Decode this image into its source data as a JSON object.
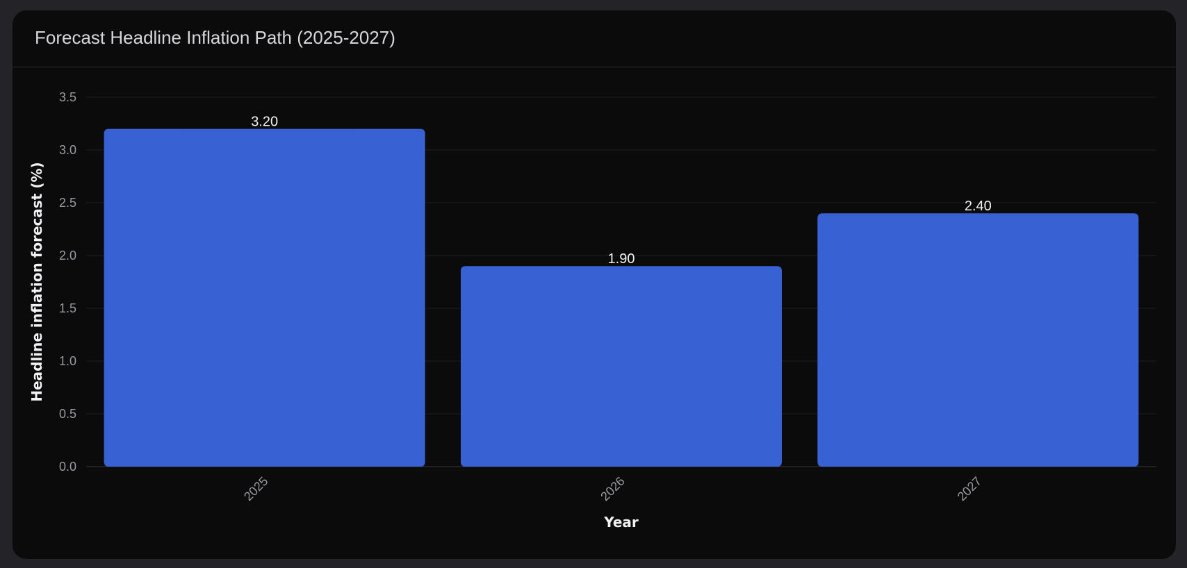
{
  "card": {
    "title": "Forecast Headline Inflation Path (2025-2027)"
  },
  "colors": {
    "background": "#242428",
    "card": "#0b0b0c",
    "bar": "#3862d3",
    "grid": "#1f1f22",
    "text_primary": "#f2f2f4",
    "text_muted": "#9a9aa0"
  },
  "chart_data": {
    "type": "bar",
    "categories": [
      "2025",
      "2026",
      "2027"
    ],
    "values": [
      3.2,
      1.9,
      2.4
    ],
    "value_labels": [
      "3.20",
      "1.90",
      "2.40"
    ],
    "xlabel": "Year",
    "ylabel": "Headline inflation forecast (%)",
    "ylim": [
      0,
      3.5
    ],
    "yticks": [
      0.0,
      0.5,
      1.0,
      1.5,
      2.0,
      2.5,
      3.0,
      3.5
    ],
    "ytick_labels": [
      "0.0",
      "0.5",
      "1.0",
      "1.5",
      "2.0",
      "2.5",
      "3.0",
      "3.5"
    ],
    "grid": true,
    "legend": "none"
  }
}
